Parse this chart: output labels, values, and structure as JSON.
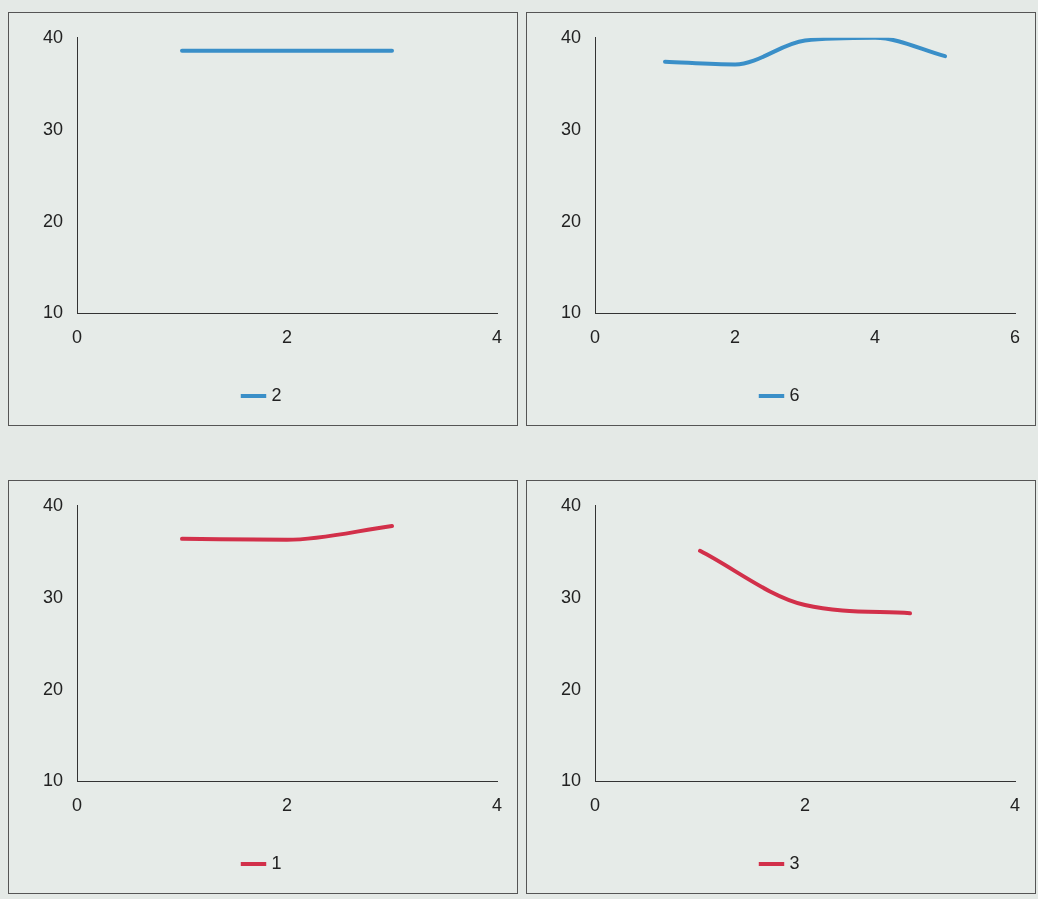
{
  "chart_data": [
    {
      "type": "line",
      "x": [
        1,
        2,
        3
      ],
      "xlim": [
        0,
        4
      ],
      "xticks": [
        0,
        2,
        4
      ],
      "ylim": [
        10,
        40
      ],
      "yticks": [
        10,
        20,
        30,
        40
      ],
      "legend": "bottom",
      "series": [
        {
          "name": "2",
          "color": "#3a8fc8",
          "values": [
            38.6,
            38.6,
            38.6
          ]
        }
      ]
    },
    {
      "type": "line",
      "x": [
        1,
        2,
        3,
        4,
        5
      ],
      "xlim": [
        0,
        6
      ],
      "xticks": [
        0,
        2,
        4,
        6
      ],
      "ylim": [
        10,
        40
      ],
      "yticks": [
        10,
        20,
        30,
        40
      ],
      "legend": "bottom",
      "series": [
        {
          "name": "6",
          "color": "#3a8fc8",
          "values": [
            37.4,
            37.1,
            39.7,
            40,
            38
          ]
        }
      ]
    },
    {
      "type": "line",
      "x": [
        1,
        2,
        3
      ],
      "xlim": [
        0,
        4
      ],
      "xticks": [
        0,
        2,
        4
      ],
      "ylim": [
        10,
        40
      ],
      "yticks": [
        10,
        20,
        30,
        40
      ],
      "legend": "bottom",
      "series": [
        {
          "name": "1",
          "color": "#d2304a",
          "values": [
            36.4,
            36.3,
            37.8
          ]
        }
      ]
    },
    {
      "type": "line",
      "x": [
        1,
        2,
        3
      ],
      "xlim": [
        0,
        4
      ],
      "xticks": [
        0,
        2,
        4
      ],
      "ylim": [
        10,
        40
      ],
      "yticks": [
        10,
        20,
        30,
        40
      ],
      "legend": "bottom",
      "series": [
        {
          "name": "3",
          "color": "#d2304a",
          "values": [
            35.1,
            29.2,
            28.3
          ]
        }
      ]
    }
  ]
}
